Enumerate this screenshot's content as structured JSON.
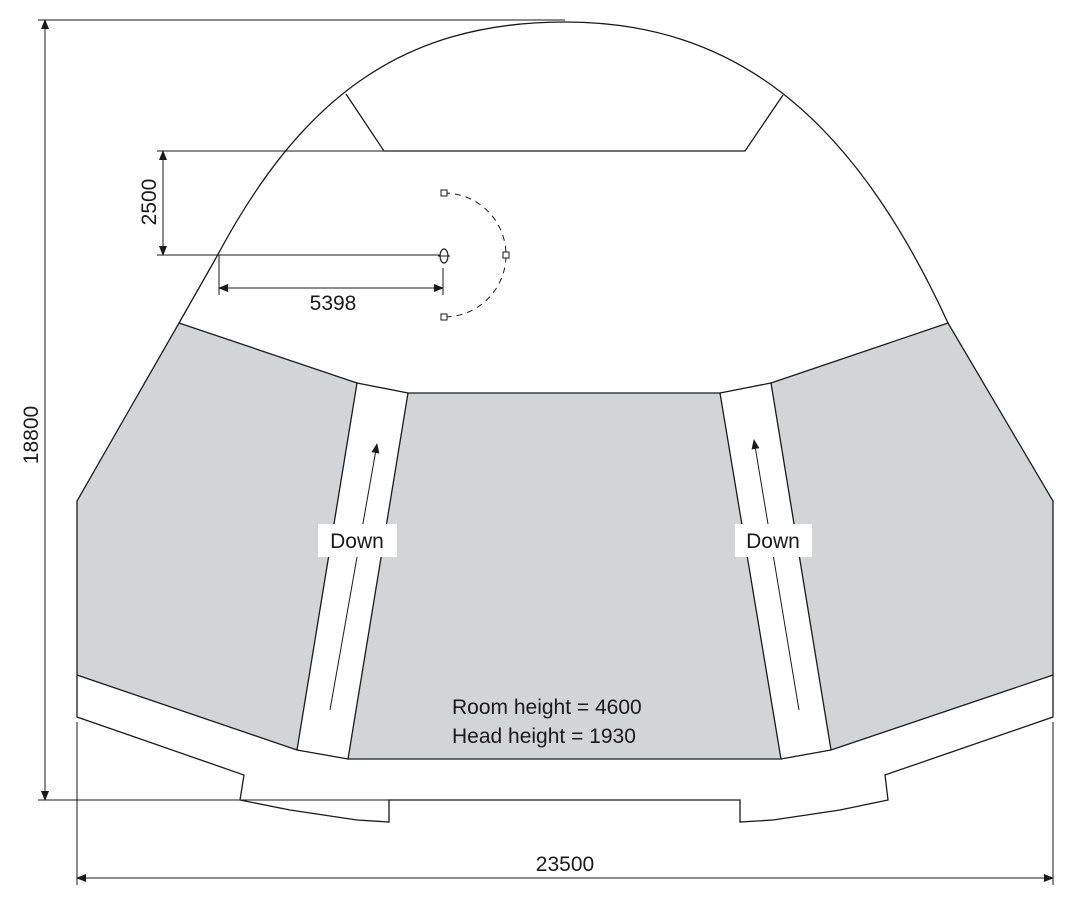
{
  "dimensions": {
    "overall_height": "18800",
    "overall_width": "23500",
    "vertical_offset": "2500",
    "horizontal_offset": "5398"
  },
  "aisles": {
    "left_label": "Down",
    "right_label": "Down"
  },
  "notes": {
    "room_height": "Room height = 4600",
    "head_height": "Head height = 1930"
  },
  "colors": {
    "seating_fill": "#d3d4d6",
    "line": "#1a1a1a"
  }
}
